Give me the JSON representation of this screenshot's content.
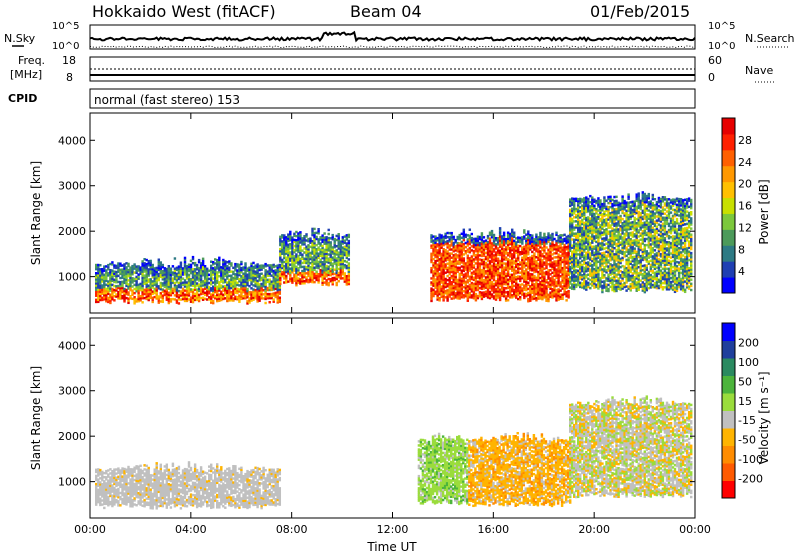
{
  "header": {
    "station": "Hokkaido West (fitACF)",
    "beam": "Beam 04",
    "date": "01/Feb/2015"
  },
  "top_panels": {
    "nsky_label": "N.Sky",
    "nsky_ticks": [
      "10^5",
      "10^0"
    ],
    "nsearch_label": "N.Search",
    "nsearch_ticks": [
      "10^5",
      "10^0"
    ],
    "freq_label": "Freq.",
    "freq_unit": "[MHz]",
    "freq_ticks": [
      "18",
      "8"
    ],
    "nave_label": "Nave",
    "nave_ticks": [
      "60",
      "0"
    ],
    "cpid_label": "CPID",
    "cpid_text": "normal (fast stereo) 153"
  },
  "colors": {
    "power": [
      "#0000ff",
      "#1f3fb3",
      "#2d7a84",
      "#4c9a5a",
      "#7cc83c",
      "#c8e000",
      "#ffc000",
      "#ff9800",
      "#ff6000",
      "#ff2000",
      "#e60000"
    ],
    "velocity": [
      "#ff0000",
      "#ff5a00",
      "#ff8c00",
      "#ffb400",
      "#c0c0c0",
      "#9adc3c",
      "#4cb43c",
      "#2a8a60",
      "#1f3f9c",
      "#0000ff"
    ]
  },
  "chart_data": [
    {
      "type": "heatmap",
      "name": "Power",
      "ylabel": "Slant Range [km]",
      "xlabel": "",
      "x_ticks": [
        "00:00",
        "04:00",
        "08:00",
        "12:00",
        "16:00",
        "20:00",
        "00:00"
      ],
      "y_ticks": [
        1000,
        2000,
        3000,
        4000
      ],
      "ylim": [
        200,
        4600
      ],
      "xlim_hours": [
        0,
        24
      ],
      "colorbar": {
        "label": "Power [dB]",
        "ticks": [
          4,
          8,
          12,
          16,
          20,
          24,
          28
        ],
        "range": [
          0,
          32
        ]
      },
      "regions": [
        {
          "t0": 0.2,
          "t1": 7.5,
          "r0": 450,
          "r1": 1250,
          "level": "high"
        },
        {
          "t0": 7.5,
          "t1": 10.3,
          "r0": 850,
          "r1": 1900,
          "level": "high"
        },
        {
          "t0": 13.5,
          "t1": 19.0,
          "r0": 500,
          "r1": 1900,
          "level": "very-high"
        },
        {
          "t0": 19.0,
          "t1": 23.8,
          "r0": 700,
          "r1": 2700,
          "level": "medium"
        }
      ]
    },
    {
      "type": "heatmap",
      "name": "Velocity",
      "ylabel": "Slant Range [km]",
      "xlabel": "Time UT",
      "x_ticks": [
        "00:00",
        "04:00",
        "08:00",
        "12:00",
        "16:00",
        "20:00",
        "00:00"
      ],
      "y_ticks": [
        1000,
        2000,
        3000,
        4000
      ],
      "ylim": [
        200,
        4600
      ],
      "xlim_hours": [
        0,
        24
      ],
      "colorbar": {
        "label": "Velocity [m s⁻¹]",
        "ticks": [
          "200",
          "100",
          "50",
          "15",
          "-15",
          "-50",
          "-100",
          "-200"
        ],
        "range": [
          -250,
          250
        ]
      },
      "regions": [
        {
          "t0": 0.2,
          "t1": 7.5,
          "r0": 450,
          "r1": 1250,
          "level": "ground-scatter"
        },
        {
          "t0": 13.0,
          "t1": 15.0,
          "r0": 550,
          "r1": 1900,
          "level": "positive"
        },
        {
          "t0": 15.0,
          "t1": 19.0,
          "r0": 500,
          "r1": 1900,
          "level": "negative"
        },
        {
          "t0": 19.0,
          "t1": 23.8,
          "r0": 700,
          "r1": 2700,
          "level": "mixed"
        }
      ]
    }
  ]
}
